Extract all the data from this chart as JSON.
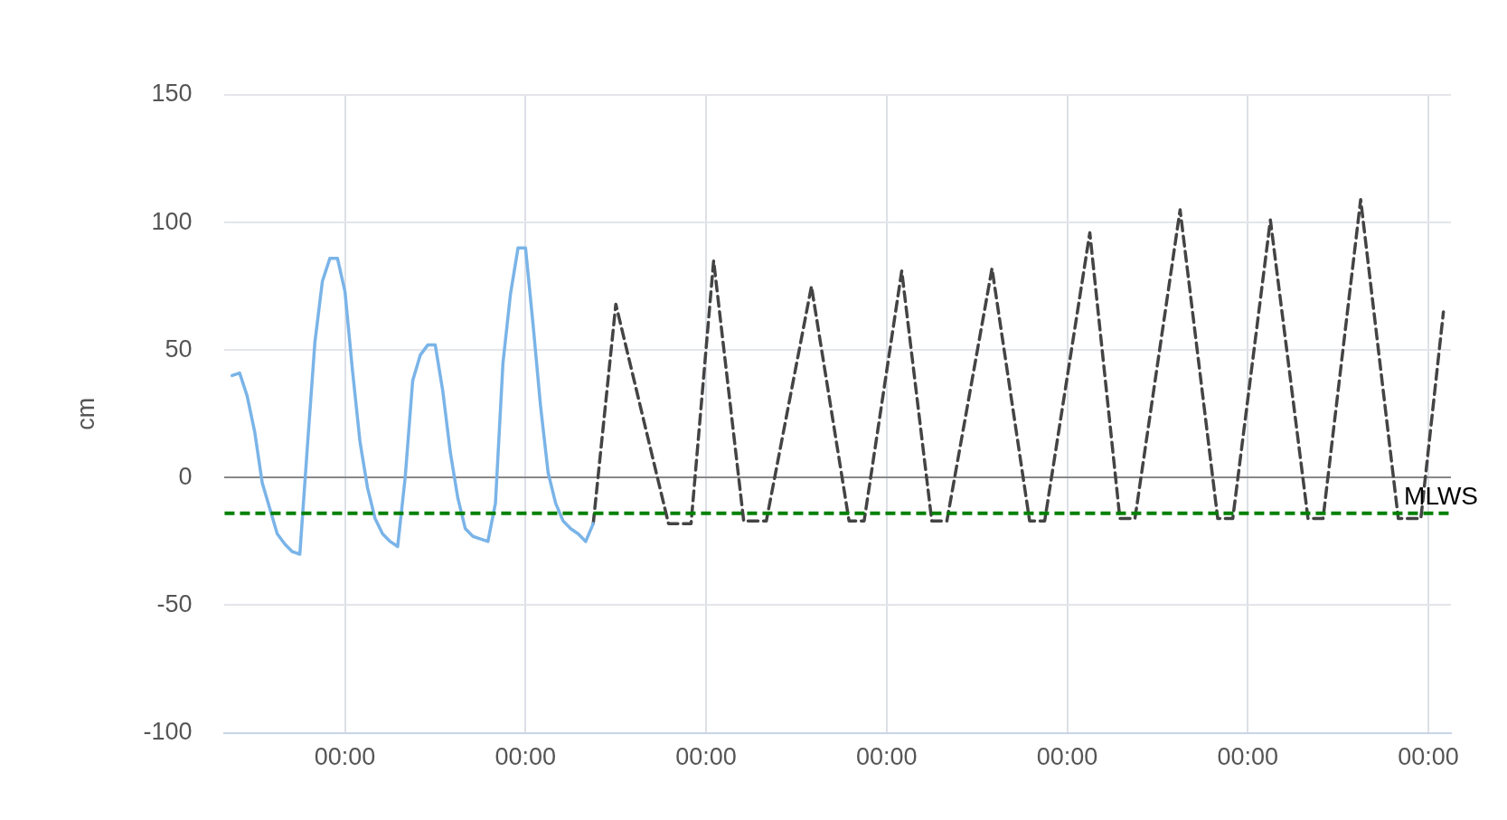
{
  "chart_data": {
    "type": "line",
    "ylabel": "cm",
    "categories": [
      null,
      null,
      null,
      null,
      null,
      null,
      null,
      null,
      null,
      null,
      null,
      null,
      null,
      null,
      null,
      null,
      "00:00",
      null,
      null,
      null,
      null,
      null,
      null,
      null,
      null,
      null,
      null,
      null,
      null,
      null,
      null,
      null,
      null,
      null,
      null,
      null,
      null,
      null,
      null,
      null,
      "00:00",
      null,
      null,
      null,
      null,
      null,
      null,
      null,
      null,
      null,
      null,
      null,
      null,
      null,
      null,
      null,
      null,
      null,
      null,
      null,
      null,
      null,
      null,
      null,
      "00:00",
      null,
      null,
      null,
      null,
      null,
      null,
      null,
      null,
      null,
      null,
      null,
      null,
      null,
      null,
      null,
      null,
      null,
      null,
      null,
      null,
      null,
      null,
      null,
      "00:00",
      null,
      null,
      null,
      null,
      null,
      null,
      null,
      null,
      null,
      null,
      null,
      null,
      null,
      null,
      null,
      null,
      null,
      null,
      null,
      null,
      null,
      null,
      null,
      "00:00",
      null,
      null,
      null,
      null,
      null,
      null,
      null,
      null,
      null,
      null,
      null,
      null,
      null,
      null,
      null,
      null,
      null,
      null,
      null,
      null,
      null,
      null,
      null,
      "00:00",
      null,
      null,
      null,
      null,
      null,
      null,
      null,
      null,
      null,
      null,
      null,
      null,
      null,
      null,
      null,
      null,
      null,
      null,
      null,
      null,
      null,
      null,
      null,
      "00:00",
      null,
      null,
      null
    ],
    "ylim": [
      -100,
      150
    ],
    "yticks": [
      -100,
      -50,
      0,
      50,
      100,
      150
    ],
    "grid": true,
    "legend": false,
    "marker": "none",
    "ref_lines": [
      {
        "axis": "y",
        "value": -14,
        "label": "MLWS",
        "color": "#008000",
        "line_style": "dashed"
      }
    ],
    "series": [
      {
        "color": "#7ab4e8",
        "line_style": "solid",
        "values": [
          null,
          40,
          41,
          32,
          18,
          -2,
          -12,
          -22,
          -26,
          -29,
          -30,
          12,
          53,
          77,
          86,
          86,
          73,
          42,
          14,
          -4,
          -16,
          -22,
          -25,
          -27,
          0,
          38,
          48,
          52,
          52,
          34,
          10,
          -8,
          -20,
          -23,
          -24,
          -25,
          -10,
          45,
          72,
          90,
          90,
          60,
          28,
          2,
          -10,
          -17,
          -20,
          -22,
          -25,
          -18,
          null,
          null,
          null,
          null,
          null,
          null,
          null,
          null,
          null,
          null,
          null,
          null,
          null,
          null,
          null,
          null,
          null,
          null,
          null,
          null,
          null,
          null,
          null,
          null,
          null,
          null,
          null,
          null,
          null,
          null,
          null,
          null,
          null,
          null,
          null,
          null,
          null,
          null,
          null,
          null,
          null,
          null,
          null,
          null,
          null,
          null,
          null,
          null,
          null,
          null,
          null,
          null,
          null,
          null,
          null,
          null,
          null,
          null,
          null,
          null,
          null,
          null,
          null,
          null,
          null,
          null,
          null,
          null,
          null,
          null,
          null,
          null,
          null,
          null,
          null,
          null,
          null,
          null,
          null,
          null,
          null,
          null,
          null,
          null,
          null,
          null,
          null,
          null,
          null,
          null,
          null,
          null,
          null,
          null,
          null,
          null,
          null,
          null,
          null,
          null,
          null,
          null,
          null,
          null,
          null,
          null,
          null,
          null,
          null,
          null,
          null,
          null,
          null,
          null
        ]
      },
      {
        "color": "#444444",
        "line_style": "dashed",
        "values": [
          null,
          null,
          null,
          null,
          null,
          null,
          null,
          null,
          null,
          null,
          null,
          null,
          null,
          null,
          null,
          null,
          null,
          null,
          null,
          null,
          null,
          null,
          null,
          null,
          null,
          null,
          null,
          null,
          null,
          null,
          null,
          null,
          null,
          null,
          null,
          null,
          null,
          null,
          null,
          null,
          null,
          null,
          null,
          null,
          null,
          null,
          null,
          null,
          null,
          -18,
          null,
          null,
          68,
          null,
          null,
          null,
          null,
          null,
          null,
          -18,
          null,
          null,
          -18,
          null,
          null,
          85,
          null,
          null,
          null,
          -17,
          null,
          null,
          -17,
          null,
          null,
          null,
          null,
          null,
          75,
          null,
          null,
          null,
          null,
          -17,
          null,
          -17,
          null,
          null,
          null,
          null,
          81,
          null,
          null,
          null,
          -17,
          null,
          -17,
          null,
          null,
          null,
          null,
          null,
          82,
          null,
          null,
          null,
          null,
          -17,
          null,
          -17,
          null,
          null,
          null,
          null,
          null,
          96,
          null,
          null,
          null,
          -16,
          null,
          -16,
          null,
          null,
          null,
          null,
          null,
          105,
          null,
          null,
          null,
          null,
          -16,
          null,
          -16,
          null,
          null,
          null,
          null,
          101,
          null,
          null,
          null,
          null,
          -16,
          null,
          -16,
          null,
          null,
          null,
          null,
          109,
          null,
          null,
          null,
          null,
          -16,
          null,
          null,
          -16,
          null,
          null,
          65,
          null
        ]
      }
    ]
  }
}
